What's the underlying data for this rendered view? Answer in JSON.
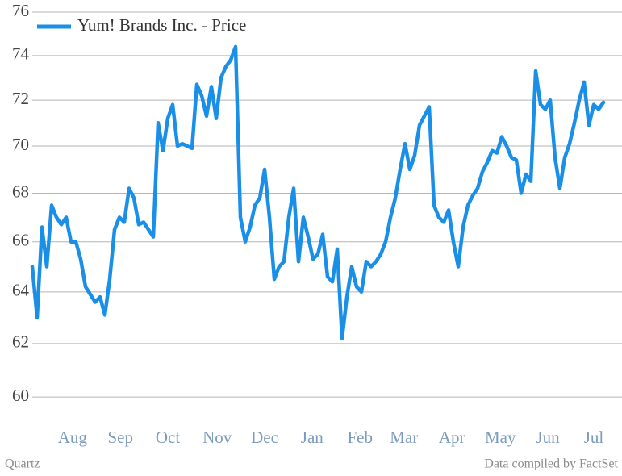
{
  "chart_data": {
    "type": "line",
    "series": [
      {
        "name": "Yum! Brands Inc. - Price",
        "color": "#1a8fe8",
        "values": [
          65,
          63,
          66.6,
          65,
          67.5,
          67,
          66.7,
          67,
          66,
          66,
          65.3,
          64.2,
          63.9,
          63.6,
          63.8,
          63.1,
          64.5,
          66.5,
          67,
          66.8,
          68.2,
          67.8,
          66.7,
          66.8,
          66.5,
          66.2,
          71,
          69.8,
          71.2,
          71.8,
          70,
          70.1,
          70,
          69.9,
          72.7,
          72.2,
          71.3,
          72.6,
          71.2,
          73,
          73.5,
          73.8,
          74.4,
          67,
          66,
          66.6,
          67.5,
          67.8,
          69,
          67,
          64.5,
          65,
          65.2,
          67,
          68.2,
          65.2,
          67,
          66.2,
          65.3,
          65.5,
          66.3,
          64.6,
          64.4,
          65.7,
          62.2,
          63.8,
          65,
          64.2,
          64,
          65.2,
          65,
          65.2,
          65.5,
          66,
          67,
          67.8,
          69,
          70.1,
          69,
          69.6,
          70.9,
          71.3,
          71.7,
          67.5,
          67,
          66.8,
          67.3,
          66,
          65,
          66.6,
          67.5,
          67.9,
          68.2,
          68.9,
          69.3,
          69.8,
          69.7,
          70.4,
          70,
          69.5,
          69.4,
          68,
          68.8,
          68.5,
          73.3,
          71.8,
          71.6,
          72,
          69.5,
          68.2,
          69.5,
          70.1,
          71,
          72,
          72.8,
          70.9,
          71.8,
          71.6,
          71.9
        ]
      }
    ],
    "xlim": [
      0,
      118
    ],
    "xticks": [
      {
        "value": 8.3,
        "label": "Aug"
      },
      {
        "value": 18.2,
        "label": "Sep"
      },
      {
        "value": 28,
        "label": "Oct"
      },
      {
        "value": 38.2,
        "label": "Nov"
      },
      {
        "value": 48,
        "label": "Dec"
      },
      {
        "value": 57.8,
        "label": "Jan"
      },
      {
        "value": 67.7,
        "label": "Feb"
      },
      {
        "value": 76.8,
        "label": "Mar"
      },
      {
        "value": 86.7,
        "label": "Apr"
      },
      {
        "value": 96.7,
        "label": "May"
      },
      {
        "value": 106.5,
        "label": "Jun"
      },
      {
        "value": 116,
        "label": "Jul"
      }
    ],
    "ylim": [
      59,
      76
    ],
    "yticks": [
      60,
      62,
      64,
      66,
      68,
      70,
      72,
      74,
      76
    ],
    "log_scale": true,
    "grid": true,
    "legend": "top-left",
    "source": "Data compiled by FactSet",
    "credit": "Quartz"
  }
}
